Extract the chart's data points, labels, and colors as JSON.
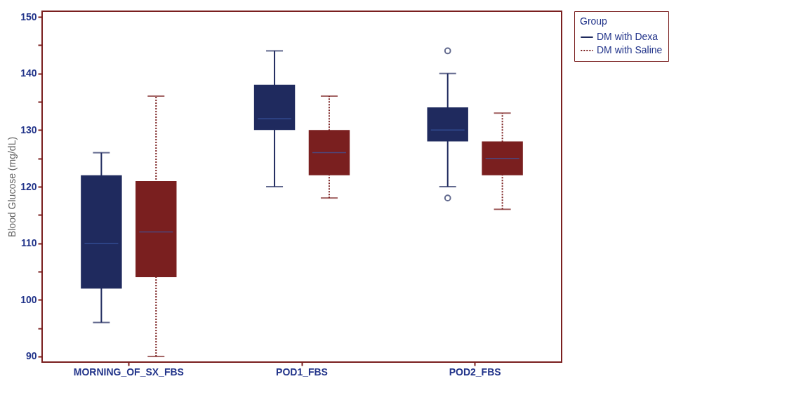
{
  "chart_data": {
    "type": "box",
    "ylabel": "Blood Glucose (mg/dL)",
    "legend_title": "Group",
    "categories": [
      "MORNING_OF_SX_FBS",
      "POD1_FBS",
      "POD2_FBS"
    ],
    "ylim": [
      89,
      151
    ],
    "yticks": [
      90,
      {
        "value": 95,
        "label": null
      },
      100,
      {
        "value": 105,
        "label": null
      },
      110,
      {
        "value": 115,
        "label": null
      },
      120,
      {
        "value": 125,
        "label": null
      },
      130,
      {
        "value": 135,
        "label": null
      },
      140,
      {
        "value": 145,
        "label": null
      },
      150
    ],
    "grid": false,
    "legend": "right",
    "marker": "circle",
    "series": [
      {
        "name": "DM with Dexa",
        "color": "#1f2a5e",
        "line_style": "solid",
        "boxes": [
          {
            "low": 96,
            "q1": 102,
            "median": 110,
            "q3": 122,
            "high": 126
          },
          {
            "low": 120,
            "q1": 130,
            "median": 132,
            "q3": 138,
            "high": 144
          },
          {
            "low": 120,
            "q1": 128,
            "median": 130,
            "q3": 134,
            "high": 140,
            "outliers": [
              144,
              118
            ]
          }
        ]
      },
      {
        "name": "DM with Saline",
        "color": "#7a1f1f",
        "line_style": "dotted",
        "boxes": [
          {
            "low": 90,
            "q1": 104,
            "median": 112,
            "q3": 121,
            "high": 136
          },
          {
            "low": 118,
            "q1": 122,
            "median": 126,
            "q3": 130,
            "high": 136
          },
          {
            "low": 116,
            "q1": 122,
            "median": 125,
            "q3": 128,
            "high": 133
          }
        ]
      }
    ]
  }
}
